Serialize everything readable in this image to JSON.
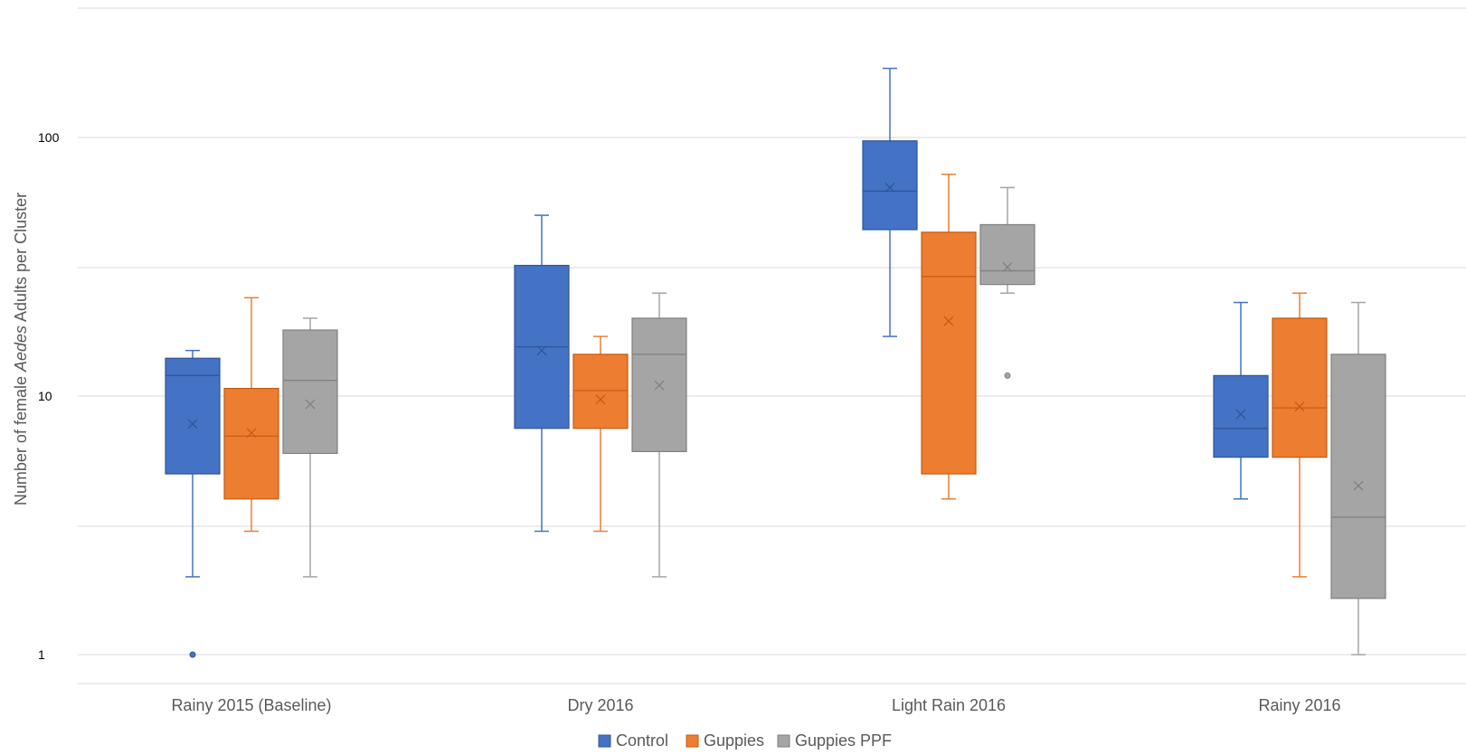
{
  "chart_data": {
    "type": "box",
    "title": "",
    "ylabel": {
      "prefix": "Number of female ",
      "italic": "Aedes",
      "suffix": " Adults per Cluster"
    },
    "xlabel": "",
    "y_scale": "log",
    "ylim": [
      0.9,
      270
    ],
    "y_ticks": [
      1,
      10,
      100
    ],
    "y_tick_labels": [
      "1",
      "10",
      "100"
    ],
    "grid": "horizontal",
    "legend_position": "bottom",
    "categories": [
      "Rainy 2015 (Baseline)",
      "Dry 2016",
      "Light Rain 2016",
      "Rainy 2016"
    ],
    "series": [
      {
        "name": "Control",
        "color": "#4472C4",
        "boxes": [
          {
            "min": 2,
            "q1": 5,
            "median": 12,
            "q3": 14,
            "max": 15,
            "mean": 7.8,
            "outliers": [
              1
            ]
          },
          {
            "min": 3,
            "q1": 7.5,
            "median": 15.5,
            "q3": 32,
            "max": 50,
            "mean": 15,
            "outliers": []
          },
          {
            "min": 17,
            "q1": 44,
            "median": 62,
            "q3": 97,
            "max": 185,
            "mean": 64,
            "outliers": []
          },
          {
            "min": 4,
            "q1": 5.8,
            "median": 7.5,
            "q3": 12,
            "max": 23,
            "mean": 8.5,
            "outliers": []
          }
        ]
      },
      {
        "name": "Guppies",
        "color": "#ED7D31",
        "boxes": [
          {
            "min": 3,
            "q1": 4,
            "median": 7,
            "q3": 10.7,
            "max": 24,
            "mean": 7.2,
            "outliers": []
          },
          {
            "min": 3,
            "q1": 7.5,
            "median": 10.5,
            "q3": 14.5,
            "max": 17,
            "mean": 9.7,
            "outliers": []
          },
          {
            "min": 4,
            "q1": 5,
            "median": 29,
            "q3": 43,
            "max": 72,
            "mean": 19.5,
            "outliers": []
          },
          {
            "min": 2,
            "q1": 5.8,
            "median": 9,
            "q3": 20,
            "max": 25,
            "mean": 9.1,
            "outliers": []
          }
        ]
      },
      {
        "name": "Guppies PPF",
        "color": "#A5A5A5",
        "boxes": [
          {
            "min": 2,
            "q1": 6,
            "median": 11.5,
            "q3": 18,
            "max": 20,
            "mean": 9.3,
            "outliers": []
          },
          {
            "min": 2,
            "q1": 6.1,
            "median": 14.5,
            "q3": 20,
            "max": 25,
            "mean": 11,
            "outliers": []
          },
          {
            "min": 25,
            "q1": 27,
            "median": 30.5,
            "q3": 46,
            "max": 64,
            "mean": 31.5,
            "outliers": [
              12
            ]
          },
          {
            "min": 1,
            "q1": 1.65,
            "median": 3.4,
            "q3": 14.5,
            "max": 23,
            "mean": 4.5,
            "outliers": []
          }
        ]
      }
    ]
  }
}
